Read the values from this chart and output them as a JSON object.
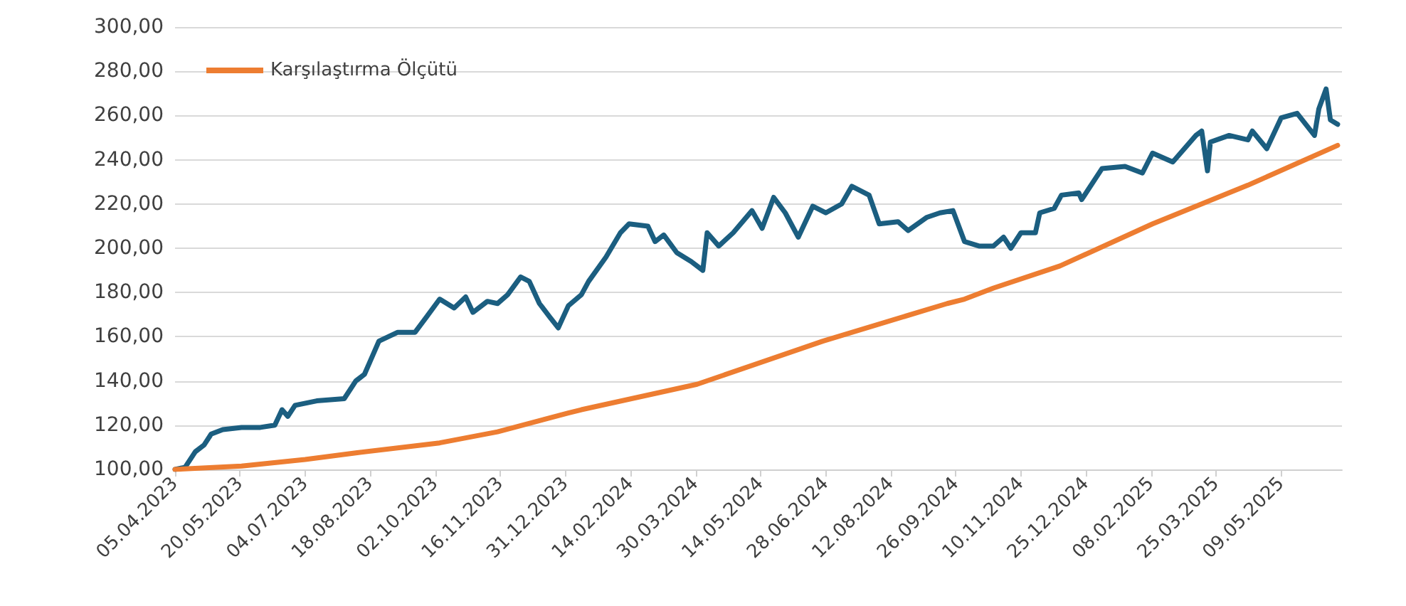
{
  "chart_data": {
    "type": "line",
    "legend": "top left",
    "grid": "y",
    "marker": "none",
    "line_style": "solid",
    "xlim": [
      "2023-04-05",
      "2025-06-20"
    ],
    "xticks": [
      {
        "value": "2023-04-05",
        "label": "05.04.2023"
      },
      {
        "value": "2023-05-20",
        "label": "20.05.2023"
      },
      {
        "value": "2023-07-04",
        "label": "04.07.2023"
      },
      {
        "value": "2023-08-18",
        "label": "18.08.2023"
      },
      {
        "value": "2023-10-02",
        "label": "02.10.2023"
      },
      {
        "value": "2023-11-16",
        "label": "16.11.2023"
      },
      {
        "value": "2023-12-31",
        "label": "31.12.2023"
      },
      {
        "value": "2024-02-14",
        "label": "14.02.2024"
      },
      {
        "value": "2024-03-30",
        "label": "30.03.2024"
      },
      {
        "value": "2024-05-14",
        "label": "14.05.2024"
      },
      {
        "value": "2024-06-28",
        "label": "28.06.2024"
      },
      {
        "value": "2024-08-12",
        "label": "12.08.2024"
      },
      {
        "value": "2024-09-26",
        "label": "26.09.2024"
      },
      {
        "value": "2024-11-10",
        "label": "10.11.2024"
      },
      {
        "value": "2024-12-25",
        "label": "25.12.2024"
      },
      {
        "value": "2025-02-08",
        "label": "08.02.2025"
      },
      {
        "value": "2025-03-25",
        "label": "25.03.2025"
      },
      {
        "value": "2025-05-09",
        "label": "09.05.2025"
      }
    ],
    "ylim": [
      100,
      300
    ],
    "yticks": [
      {
        "value": 100,
        "label": "100,00"
      },
      {
        "value": 120,
        "label": "120,00"
      },
      {
        "value": 140,
        "label": "140,00"
      },
      {
        "value": 160,
        "label": "160,00"
      },
      {
        "value": 180,
        "label": "180,00"
      },
      {
        "value": 200,
        "label": "200,00"
      },
      {
        "value": 220,
        "label": "220,00"
      },
      {
        "value": 240,
        "label": "240,00"
      },
      {
        "value": 260,
        "label": "260,00"
      },
      {
        "value": 280,
        "label": "280,00"
      },
      {
        "value": 300,
        "label": "300,00"
      }
    ],
    "series": [
      {
        "color": "#1b5e80",
        "x": [
          "2023-04-05",
          "2023-04-12",
          "2023-04-19",
          "2023-04-25",
          "2023-04-30",
          "2023-05-08",
          "2023-05-21",
          "2023-06-03",
          "2023-06-13",
          "2023-06-18",
          "2023-06-22",
          "2023-06-27",
          "2023-07-12",
          "2023-07-31",
          "2023-08-08",
          "2023-08-14",
          "2023-08-24",
          "2023-09-06",
          "2023-09-18",
          "2023-09-26",
          "2023-10-05",
          "2023-10-15",
          "2023-10-23",
          "2023-10-28",
          "2023-11-07",
          "2023-11-14",
          "2023-11-21",
          "2023-11-30",
          "2023-12-06",
          "2023-12-13",
          "2023-12-20",
          "2023-12-26",
          "2024-01-02",
          "2024-01-11",
          "2024-01-16",
          "2024-01-28",
          "2024-02-07",
          "2024-02-13",
          "2024-02-26",
          "2024-03-02",
          "2024-03-08",
          "2024-03-17",
          "2024-03-27",
          "2024-04-04",
          "2024-04-07",
          "2024-04-15",
          "2024-04-25",
          "2024-05-08",
          "2024-05-15",
          "2024-05-23",
          "2024-05-31",
          "2024-06-09",
          "2024-06-19",
          "2024-06-28",
          "2024-07-09",
          "2024-07-16",
          "2024-07-28",
          "2024-08-04",
          "2024-08-17",
          "2024-08-24",
          "2024-09-06",
          "2024-09-15",
          "2024-09-24",
          "2024-10-02",
          "2024-10-12",
          "2024-10-22",
          "2024-10-29",
          "2024-11-03",
          "2024-11-10",
          "2024-11-20",
          "2024-11-23",
          "2024-12-03",
          "2024-12-08",
          "2024-12-20",
          "2024-12-22",
          "2025-01-05",
          "2025-01-21",
          "2025-02-02",
          "2025-02-09",
          "2025-02-23",
          "2025-03-11",
          "2025-03-15",
          "2025-03-19",
          "2025-03-21",
          "2025-04-03",
          "2025-04-16",
          "2025-04-19",
          "2025-04-29",
          "2025-05-09",
          "2025-05-20",
          "2025-06-01",
          "2025-06-04",
          "2025-06-09",
          "2025-06-12",
          "2025-06-17"
        ],
        "values": [
          100,
          101,
          108,
          111,
          116,
          118,
          119,
          119,
          120,
          127,
          124,
          129,
          131,
          132,
          140,
          143,
          158,
          162,
          162,
          169,
          177,
          173,
          178,
          171,
          176,
          175,
          179,
          187,
          185,
          175,
          169,
          164,
          174,
          179,
          185,
          196,
          207,
          211,
          210,
          203,
          206,
          198,
          194,
          190,
          207,
          201,
          207,
          217,
          209,
          223,
          216,
          205,
          219,
          216,
          220,
          228,
          224,
          211,
          212,
          208,
          214,
          216,
          217,
          203,
          201,
          201,
          205,
          200,
          207,
          207,
          216,
          218,
          224,
          225,
          222,
          236,
          237,
          234,
          243,
          239,
          251,
          253,
          235,
          248,
          251,
          249,
          253,
          245,
          259,
          261,
          251,
          263,
          272,
          258,
          256
        ]
      },
      {
        "name": "Karşılaştırma Ölçütü",
        "color": "#ed7d31",
        "x": [
          "2023-04-05",
          "2023-05-21",
          "2023-07-04",
          "2023-08-08",
          "2023-10-05",
          "2023-11-14",
          "2024-01-02",
          "2024-01-11",
          "2024-03-31",
          "2024-06-26",
          "2024-09-20",
          "2024-10-02",
          "2024-10-22",
          "2024-12-07",
          "2025-02-09",
          "2025-04-16",
          "2025-06-17"
        ],
        "values": [
          100,
          101.5,
          104.5,
          107.5,
          112,
          117,
          125.5,
          127,
          138.5,
          158,
          175,
          177,
          182,
          192,
          211,
          228.5,
          246.5
        ]
      }
    ]
  }
}
